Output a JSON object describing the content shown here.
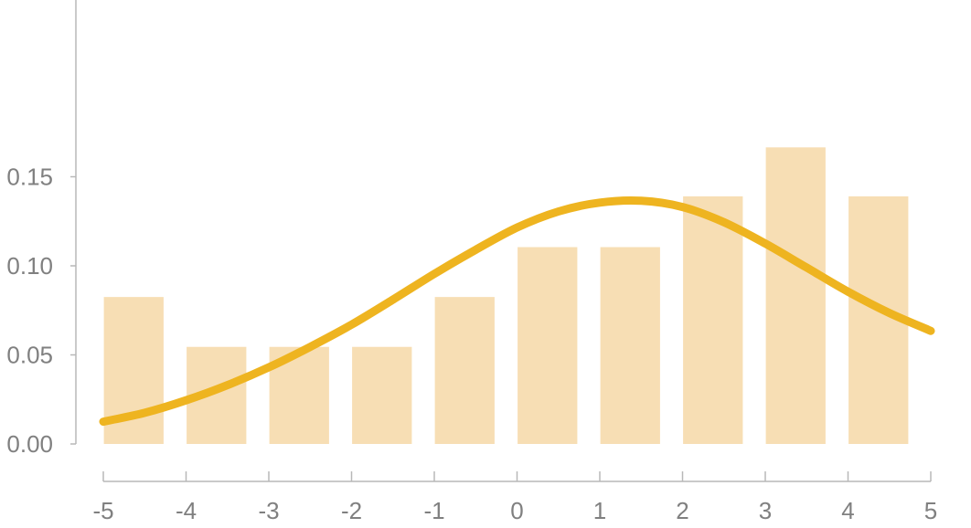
{
  "chart_data": {
    "type": "bar",
    "title": "",
    "xlabel": "",
    "ylabel": "",
    "grid": false,
    "xlim": [
      -5,
      5
    ],
    "ylim": [
      0,
      0.15
    ],
    "x_ticks": [
      "-5",
      "-4",
      "-3",
      "-2",
      "-1",
      "0",
      "1",
      "2",
      "3",
      "4",
      "5"
    ],
    "y_ticks": [
      "0.00",
      "0.05",
      "0.10",
      "0.15"
    ],
    "bar_color": "#f7deb4",
    "curve_color": "#eeb420",
    "bars": [
      {
        "x0": -5,
        "x1": -4,
        "value": 0.0825
      },
      {
        "x0": -4,
        "x1": -3,
        "value": 0.0545
      },
      {
        "x0": -3,
        "x1": -2,
        "value": 0.0545
      },
      {
        "x0": -2,
        "x1": -1,
        "value": 0.0545
      },
      {
        "x0": -1,
        "x1": 0,
        "value": 0.0825
      },
      {
        "x0": 0,
        "x1": 1,
        "value": 0.1105
      },
      {
        "x0": 1,
        "x1": 2,
        "value": 0.1105
      },
      {
        "x0": 2,
        "x1": 3,
        "value": 0.139
      },
      {
        "x0": 3,
        "x1": 4,
        "value": 0.1665
      },
      {
        "x0": 4,
        "x1": 5,
        "value": 0.139
      }
    ],
    "density_curve": {
      "x": [
        -5,
        -4.5,
        -4,
        -3.5,
        -3,
        -2.5,
        -2,
        -1.5,
        -1,
        -0.5,
        0,
        0.5,
        1,
        1.5,
        2,
        2.5,
        3,
        3.5,
        4,
        4.5,
        5
      ],
      "y": [
        0.0125,
        0.0175,
        0.0245,
        0.033,
        0.043,
        0.0545,
        0.067,
        0.081,
        0.0955,
        0.109,
        0.1215,
        0.1305,
        0.1355,
        0.1365,
        0.133,
        0.1245,
        0.1125,
        0.099,
        0.0855,
        0.0735,
        0.0635
      ]
    }
  }
}
